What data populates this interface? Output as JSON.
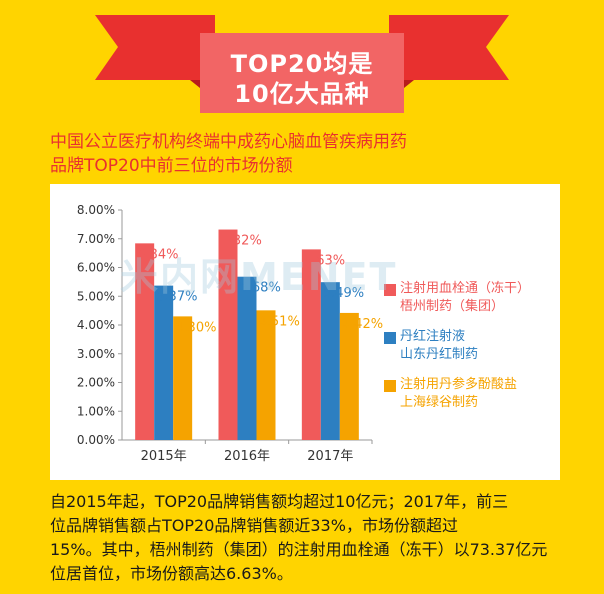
{
  "banner": {
    "line1": "TOP20均是",
    "line2": "10亿大品种",
    "colors": {
      "ribbon": "#e8302f",
      "ribbon_dark": "#b71c1c",
      "box": "#f26565"
    }
  },
  "subtitle": {
    "line1": "中国公立医疗机构终端中成药心脑血管疾病用药",
    "line2": "品牌TOP20中前三位的市场份额"
  },
  "chart_data": {
    "type": "bar",
    "categories": [
      "2015年",
      "2016年",
      "2017年"
    ],
    "y_ticks": [
      "8.00%",
      "7.00%",
      "6.00%",
      "5.00%",
      "4.00%",
      "3.00%",
      "2.00%",
      "1.00%",
      "0.00%"
    ],
    "ylim": [
      0,
      8
    ],
    "grid": false,
    "legend_position": "right",
    "series": [
      {
        "name_line1": "注射用血栓通（冻干）",
        "name_line2": "梧州制药（集团）",
        "color": "#f05a5a",
        "values": [
          6.84,
          7.32,
          6.63
        ],
        "labels": [
          "6.84%",
          "7.32%",
          "6.63%"
        ]
      },
      {
        "name_line1": "丹红注射液",
        "name_line2": "山东丹红制药",
        "color": "#2d7fc1",
        "values": [
          5.37,
          5.68,
          5.49
        ],
        "labels": [
          "5.37%",
          "5.68%",
          "5.49%"
        ]
      },
      {
        "name_line1": "注射用丹参多酚酸盐",
        "name_line2": "上海绿谷制药",
        "color": "#f5a300",
        "values": [
          4.3,
          4.51,
          4.42
        ],
        "labels": [
          "4.30%",
          "4.51%",
          "4.42%"
        ]
      }
    ]
  },
  "watermark": "米内网MENET",
  "note": {
    "line1": "自2015年起，TOP20品牌销售额均超过10亿元；2017年，前三",
    "line2": "位品牌销售额占TOP20品牌销售额近33%，市场份额超过",
    "line3": "15%。其中，梧州制药（集团）的注射用血栓通（冻干）以73.37亿元",
    "line4": "位居首位，市场份额高达6.63%。"
  }
}
